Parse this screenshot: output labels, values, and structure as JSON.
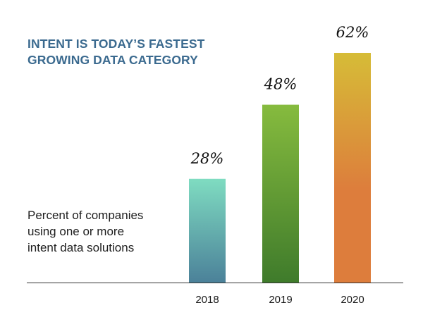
{
  "title_lines": [
    "INTENT IS TODAY’S FASTEST",
    "GROWING DATA CATEGORY"
  ],
  "description_lines": [
    "Percent of companies",
    "using one or more",
    "intent data solutions"
  ],
  "colors": {
    "title": "#3b6a8f",
    "text": "#1e1e1e",
    "axis": "#333333",
    "bar_2018": [
      "#7fdcc1",
      "#4b8199"
    ],
    "bar_2019": [
      "#86bb3e",
      "#3f7b2b"
    ],
    "bar_2020": [
      "#d6bc37",
      "#dd7d3c"
    ]
  },
  "chart_data": {
    "type": "bar",
    "title": "INTENT IS TODAY’S FASTEST GROWING DATA CATEGORY",
    "ylabel": "Percent of companies using one or more intent data solutions",
    "xlabel": "",
    "categories": [
      "2018",
      "2019",
      "2020"
    ],
    "values": [
      28,
      48,
      62
    ],
    "value_labels": [
      "28%",
      "48%",
      "62%"
    ],
    "ylim": [
      0,
      62
    ],
    "grid": false
  }
}
